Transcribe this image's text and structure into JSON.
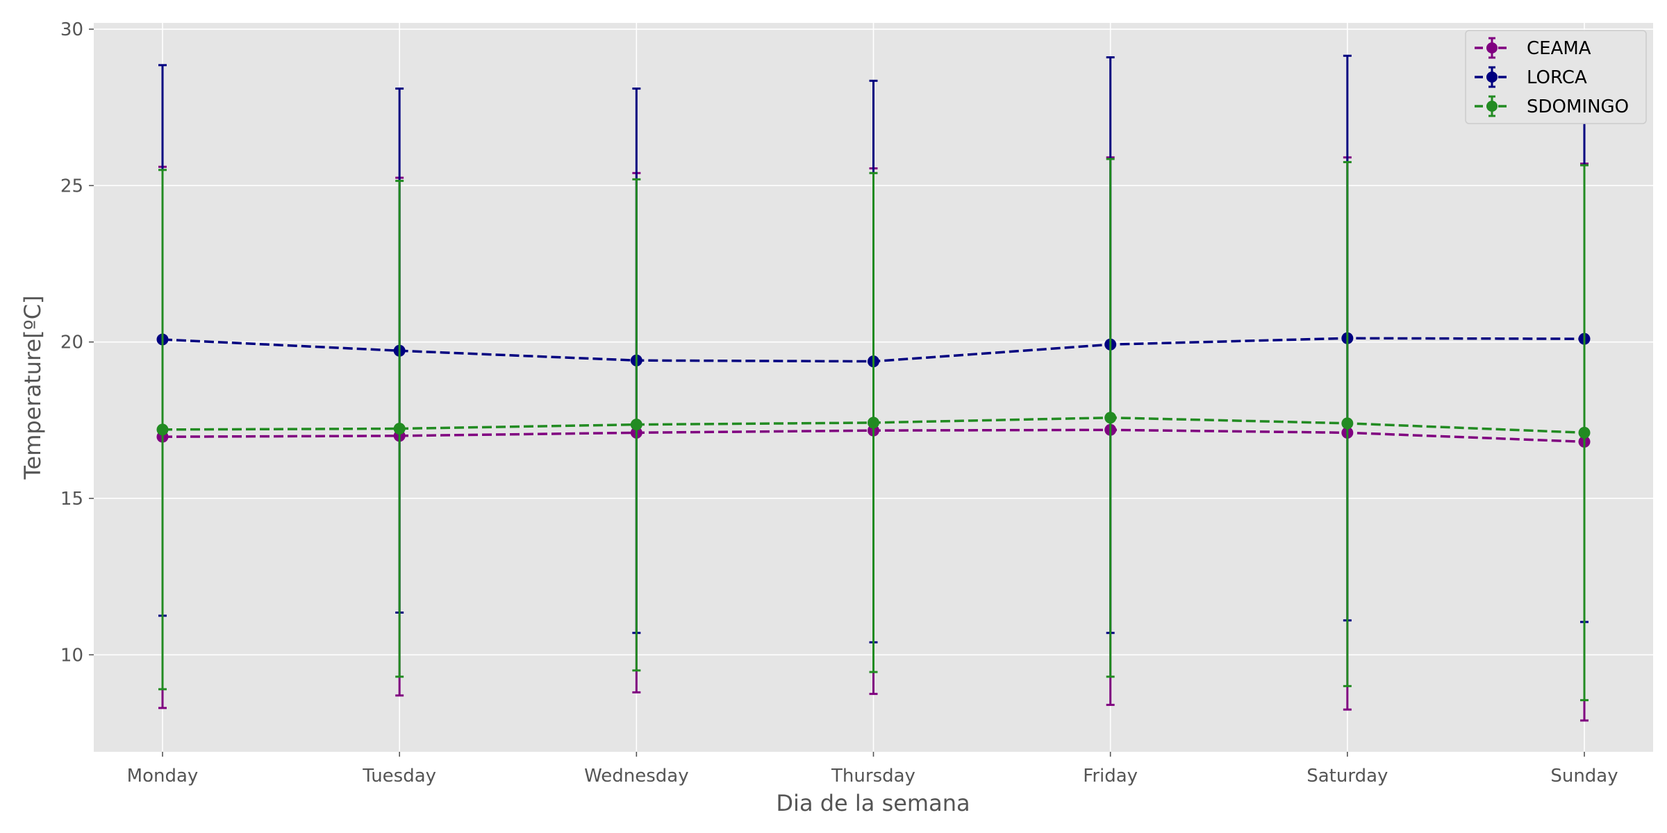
{
  "chart_data": {
    "type": "line",
    "style": "ggplot",
    "categories": [
      "Monday",
      "Tuesday",
      "Wednesday",
      "Thursday",
      "Friday",
      "Saturday",
      "Sunday"
    ],
    "xlabel": "Dia de la semana",
    "ylabel": "Temperature[ºC]",
    "ylim": [
      6.9,
      30.2
    ],
    "yticks": [
      10,
      15,
      20,
      25,
      30
    ],
    "grid": true,
    "legend_position": "top-right",
    "error_bars": true,
    "series": [
      {
        "name": "CEAMA",
        "color": "#800080",
        "values": [
          16.97,
          17.0,
          17.1,
          17.17,
          17.19,
          17.1,
          16.81
        ],
        "err_low": [
          8.3,
          8.7,
          8.8,
          8.75,
          8.4,
          8.25,
          7.9
        ],
        "err_high": [
          25.6,
          25.25,
          25.4,
          25.55,
          25.9,
          25.9,
          25.7
        ]
      },
      {
        "name": "LORCA",
        "color": "#000080",
        "values": [
          20.08,
          19.72,
          19.41,
          19.38,
          19.92,
          20.12,
          20.1
        ],
        "err_low": [
          11.25,
          11.35,
          10.7,
          10.4,
          10.7,
          11.1,
          11.05
        ],
        "err_high": [
          28.85,
          28.1,
          28.1,
          28.35,
          29.1,
          29.15,
          29.1
        ]
      },
      {
        "name": "SDOMINGO",
        "color": "#228B22",
        "values": [
          17.2,
          17.23,
          17.36,
          17.42,
          17.58,
          17.4,
          17.1
        ],
        "err_low": [
          8.9,
          9.3,
          9.5,
          9.45,
          9.3,
          9.0,
          8.55
        ],
        "err_high": [
          25.5,
          25.15,
          25.2,
          25.4,
          25.85,
          25.75,
          25.65
        ]
      }
    ]
  }
}
